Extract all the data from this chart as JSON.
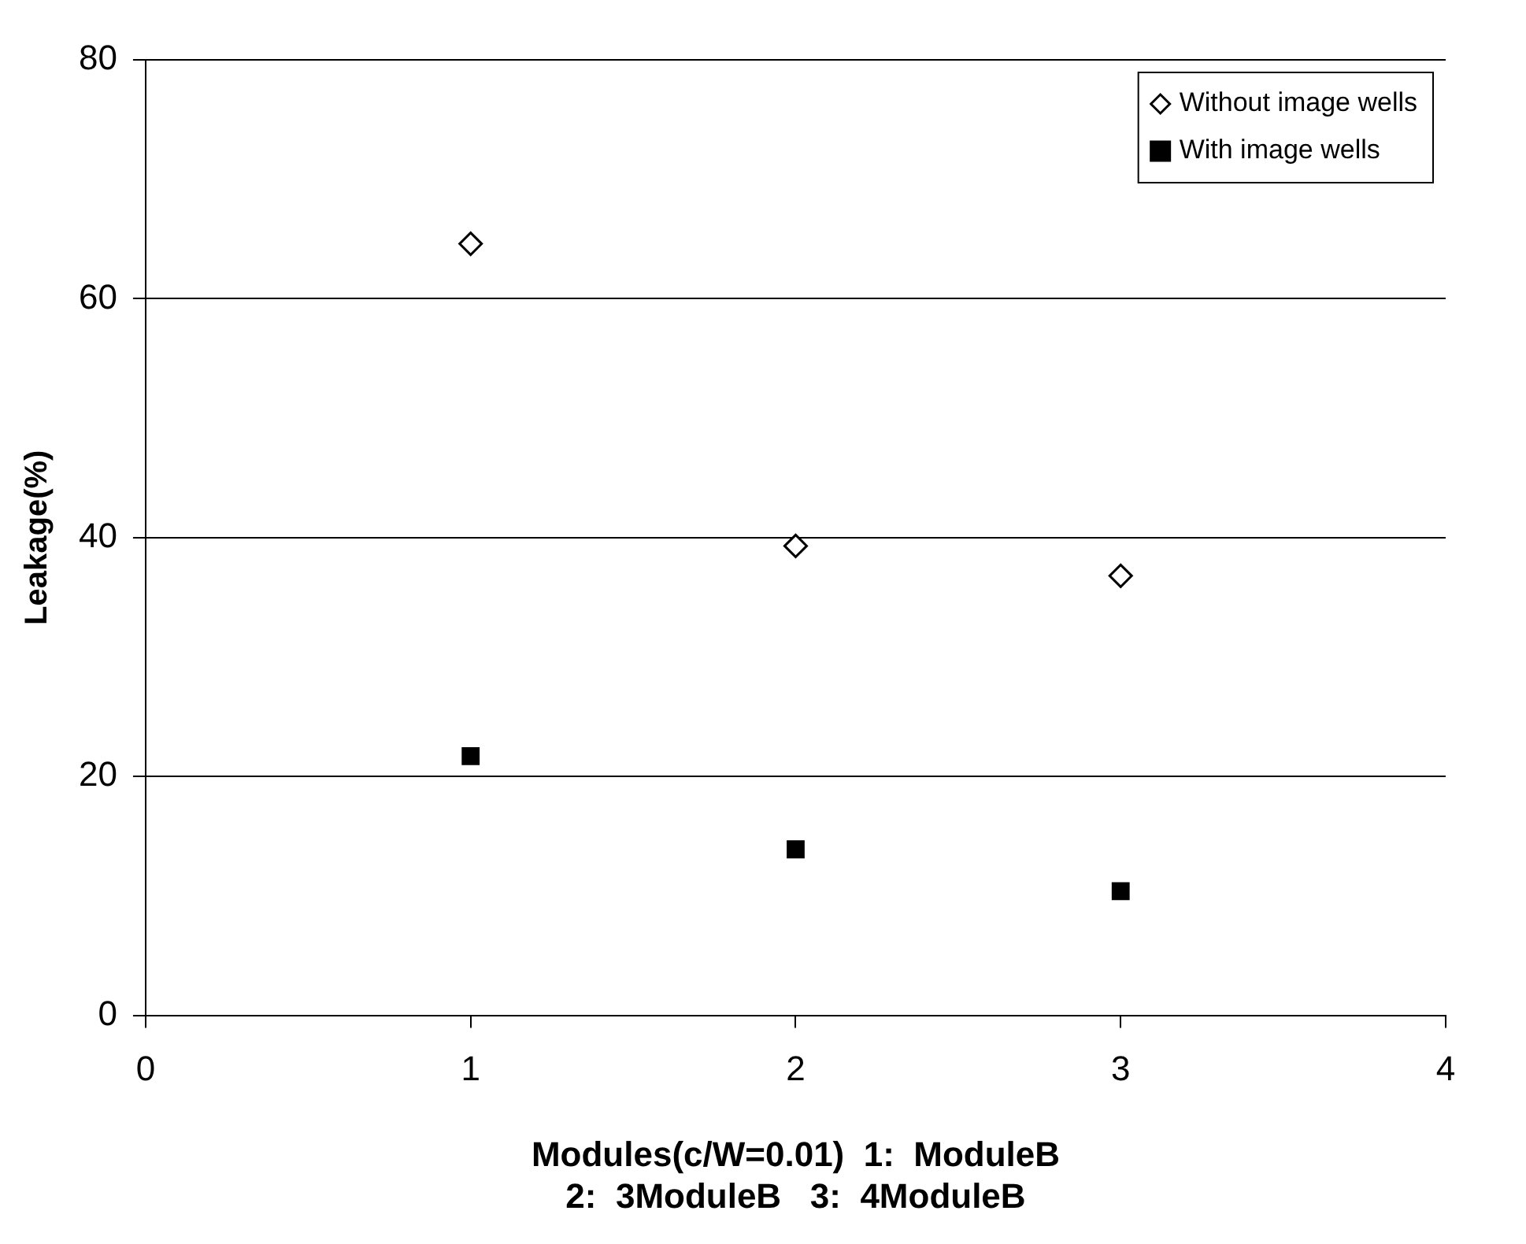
{
  "chart_data": {
    "type": "scatter",
    "xlabel": "Modules(c/W=0.01)  1:  ModuleB\n2:  3ModuleB   3:  4ModuleB",
    "ylabel": "Leakage(%)",
    "x": [
      1,
      2,
      3
    ],
    "series": [
      {
        "name": "Without image wells",
        "color": "#000000",
        "marker": "diamond",
        "values": [
          64.6,
          39.3,
          36.8
        ]
      },
      {
        "name": "With image wells",
        "color": "#000000",
        "marker": "square",
        "values": [
          21.7,
          13.9,
          10.4
        ]
      }
    ],
    "xlim": [
      0,
      4
    ],
    "xticks": [
      0,
      1,
      2,
      3,
      4
    ],
    "ylim": [
      0,
      80
    ],
    "yticks": [
      0,
      20,
      40,
      60,
      80
    ],
    "grid": "y",
    "legend": "top right"
  }
}
